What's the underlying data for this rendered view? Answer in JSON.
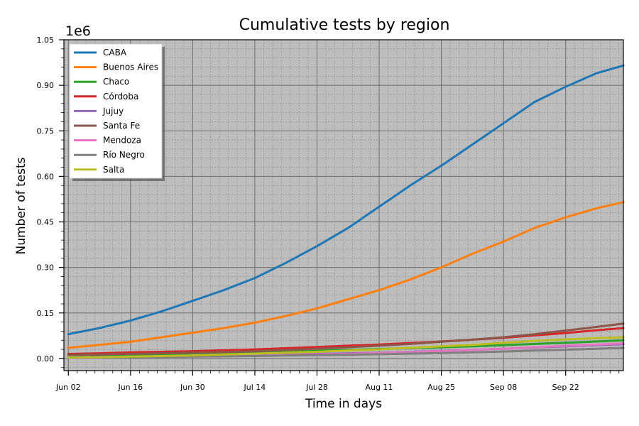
{
  "chart_data": {
    "type": "line",
    "title": "Cumulative tests by region",
    "xlabel": "Time in days",
    "ylabel": "Number of tests",
    "y_offset_text": "1e6",
    "x_tick_labels": [
      "Jun 02",
      "Jun 16",
      "Jun 30",
      "Jul 14",
      "Jul 28",
      "Aug 11",
      "Aug 25",
      "Sep 08",
      "Sep 22"
    ],
    "x_ticks_day": [
      0,
      14,
      28,
      42,
      56,
      70,
      84,
      98,
      112
    ],
    "xlim_day": [
      -1,
      125
    ],
    "y_tick_labels": [
      "0.00",
      "0.15",
      "0.30",
      "0.45",
      "0.60",
      "0.75",
      "0.90",
      "1.05"
    ],
    "y_ticks": [
      0,
      150000,
      300000,
      450000,
      600000,
      750000,
      900000,
      1050000
    ],
    "ylim": [
      -40000,
      1050000
    ],
    "grid": true,
    "legend_position": "top-left",
    "x_day": [
      0,
      7,
      14,
      21,
      28,
      35,
      42,
      49,
      56,
      63,
      70,
      77,
      84,
      91,
      98,
      105,
      112,
      119,
      125
    ],
    "series": [
      {
        "name": "CABA",
        "color": "#1f77b4",
        "values": [
          80000,
          100000,
          125000,
          155000,
          190000,
          225000,
          265000,
          315000,
          370000,
          430000,
          500000,
          570000,
          635000,
          705000,
          775000,
          845000,
          895000,
          940000,
          965000
        ]
      },
      {
        "name": "Buenos Aires",
        "color": "#ff7f0e",
        "values": [
          35000,
          45000,
          55000,
          70000,
          85000,
          100000,
          118000,
          140000,
          165000,
          195000,
          225000,
          260000,
          300000,
          345000,
          385000,
          430000,
          465000,
          495000,
          515000
        ]
      },
      {
        "name": "Chaco",
        "color": "#2ca02c",
        "values": [
          5000,
          7000,
          9000,
          11000,
          13000,
          16000,
          19000,
          22000,
          25000,
          28000,
          31000,
          34000,
          37000,
          40000,
          44000,
          48000,
          52000,
          56000,
          60000
        ]
      },
      {
        "name": "Córdoba",
        "color": "#d62728",
        "values": [
          15000,
          17000,
          20000,
          22000,
          24000,
          27000,
          30000,
          34000,
          38000,
          42000,
          46000,
          51000,
          56000,
          62000,
          68000,
          76000,
          84000,
          93000,
          100000
        ]
      },
      {
        "name": "Jujuy",
        "color": "#9467bd",
        "values": [
          4000,
          5000,
          6000,
          7000,
          8000,
          9500,
          11000,
          13000,
          15000,
          17000,
          19000,
          22000,
          25000,
          28000,
          32000,
          36000,
          40000,
          44000,
          47000
        ]
      },
      {
        "name": "Santa Fe",
        "color": "#8c564b",
        "values": [
          12000,
          13000,
          15000,
          17000,
          19000,
          21000,
          24000,
          28000,
          32000,
          37000,
          42000,
          48000,
          55000,
          62000,
          70000,
          80000,
          92000,
          104000,
          115000
        ]
      },
      {
        "name": "Mendoza",
        "color": "#e377c2",
        "values": [
          3000,
          4000,
          5000,
          6000,
          7000,
          8000,
          9000,
          11000,
          13000,
          15000,
          18000,
          21000,
          24000,
          28000,
          32000,
          37000,
          42000,
          46000,
          50000
        ]
      },
      {
        "name": "Río Negro",
        "color": "#7f7f7f",
        "values": [
          2000,
          3000,
          4000,
          5000,
          6000,
          7000,
          8000,
          9500,
          11000,
          12500,
          14000,
          16000,
          18000,
          20000,
          23000,
          26000,
          29000,
          32000,
          35000
        ]
      },
      {
        "name": "Salta",
        "color": "#bcbd22",
        "values": [
          3000,
          4000,
          6000,
          8000,
          10000,
          13000,
          16000,
          19000,
          22000,
          26000,
          30000,
          35000,
          40000,
          45000,
          52000,
          58000,
          63000,
          67000,
          70000
        ]
      }
    ]
  }
}
